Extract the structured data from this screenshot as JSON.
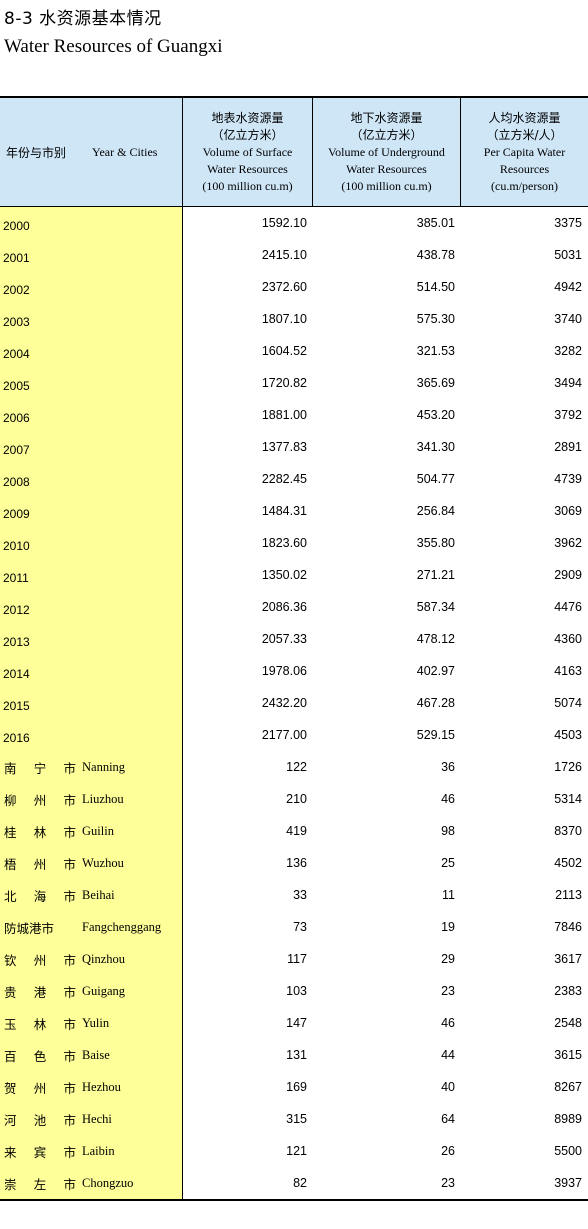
{
  "title_cn": "8-3  水资源基本情况",
  "title_en": "Water Resources of Guangxi",
  "header": {
    "col0_cn": "年份与市别",
    "col0_en": "Year & Cities",
    "col1": [
      "地表水资源量",
      "（亿立方米）",
      "Volume of Surface",
      "Water Resources",
      "(100 million cu.m)"
    ],
    "col2": [
      "地下水资源量",
      "（亿立方米）",
      "Volume of Underground",
      "Water Resources",
      "(100 million cu.m)"
    ],
    "col3": [
      "人均水资源量",
      "（立方米/人）",
      "Per Capita Water",
      "Resources",
      "(cu.m/person)"
    ]
  },
  "colors": {
    "header_bg": "#cfe6f7",
    "label_col_bg": "#ffff99"
  },
  "year_rows": [
    {
      "year": "2000",
      "surface": "1592.10",
      "underground": "385.01",
      "per_capita": "3375"
    },
    {
      "year": "2001",
      "surface": "2415.10",
      "underground": "438.78",
      "per_capita": "5031"
    },
    {
      "year": "2002",
      "surface": "2372.60",
      "underground": "514.50",
      "per_capita": "4942"
    },
    {
      "year": "2003",
      "surface": "1807.10",
      "underground": "575.30",
      "per_capita": "3740"
    },
    {
      "year": "2004",
      "surface": "1604.52",
      "underground": "321.53",
      "per_capita": "3282"
    },
    {
      "year": "2005",
      "surface": "1720.82",
      "underground": "365.69",
      "per_capita": "3494"
    },
    {
      "year": "2006",
      "surface": "1881.00",
      "underground": "453.20",
      "per_capita": "3792"
    },
    {
      "year": "2007",
      "surface": "1377.83",
      "underground": "341.30",
      "per_capita": "2891"
    },
    {
      "year": "2008",
      "surface": "2282.45",
      "underground": "504.77",
      "per_capita": "4739"
    },
    {
      "year": "2009",
      "surface": "1484.31",
      "underground": "256.84",
      "per_capita": "3069"
    },
    {
      "year": "2010",
      "surface": "1823.60",
      "underground": "355.80",
      "per_capita": "3962"
    },
    {
      "year": "2011",
      "surface": "1350.02",
      "underground": "271.21",
      "per_capita": "2909"
    },
    {
      "year": "2012",
      "surface": "2086.36",
      "underground": "587.34",
      "per_capita": "4476"
    },
    {
      "year": "2013",
      "surface": "2057.33",
      "underground": "478.12",
      "per_capita": "4360"
    },
    {
      "year": "2014",
      "surface": "1978.06",
      "underground": "402.97",
      "per_capita": "4163"
    },
    {
      "year": "2015",
      "surface": "2432.20",
      "underground": "467.28",
      "per_capita": "5074"
    },
    {
      "year": "2016",
      "surface": "2177.00",
      "underground": "529.15",
      "per_capita": "4503"
    }
  ],
  "city_rows": [
    {
      "cn": "南宁市",
      "en": "Nanning",
      "surface": "122",
      "underground": "36",
      "per_capita": "1726"
    },
    {
      "cn": "柳州市",
      "en": "Liuzhou",
      "surface": "210",
      "underground": "46",
      "per_capita": "5314"
    },
    {
      "cn": "桂林市",
      "en": "Guilin",
      "surface": "419",
      "underground": "98",
      "per_capita": "8370"
    },
    {
      "cn": "梧州市",
      "en": "Wuzhou",
      "surface": "136",
      "underground": "25",
      "per_capita": "4502"
    },
    {
      "cn": "北海市",
      "en": "Beihai",
      "surface": "33",
      "underground": "11",
      "per_capita": "2113"
    },
    {
      "cn": "防城港市",
      "en": "Fangchenggang",
      "surface": "73",
      "underground": "19",
      "per_capita": "7846"
    },
    {
      "cn": "钦州市",
      "en": "Qinzhou",
      "surface": "117",
      "underground": "29",
      "per_capita": "3617"
    },
    {
      "cn": "贵港市",
      "en": "Guigang",
      "surface": "103",
      "underground": "23",
      "per_capita": "2383"
    },
    {
      "cn": "玉林市",
      "en": "Yulin",
      "surface": "147",
      "underground": "46",
      "per_capita": "2548"
    },
    {
      "cn": "百色市",
      "en": "Baise",
      "surface": "131",
      "underground": "44",
      "per_capita": "3615"
    },
    {
      "cn": "贺州市",
      "en": "Hezhou",
      "surface": "169",
      "underground": "40",
      "per_capita": "8267"
    },
    {
      "cn": "河池市",
      "en": "Hechi",
      "surface": "315",
      "underground": "64",
      "per_capita": "8989"
    },
    {
      "cn": "来宾市",
      "en": "Laibin",
      "surface": "121",
      "underground": "26",
      "per_capita": "5500"
    },
    {
      "cn": "崇左市",
      "en": "Chongzuo",
      "surface": "82",
      "underground": "23",
      "per_capita": "3937"
    }
  ]
}
